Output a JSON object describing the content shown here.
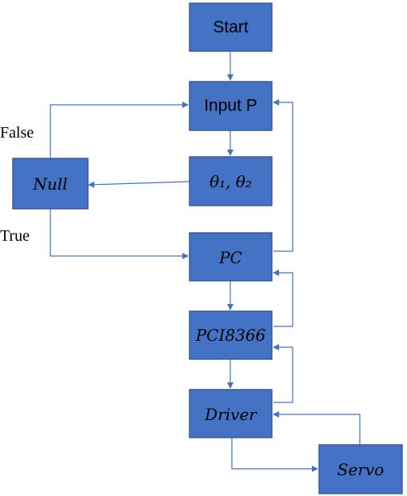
{
  "nodes": {
    "start": "Start",
    "input_p": "Input P",
    "theta": "θ₁, θ₂",
    "null": "Null",
    "pc": "PC",
    "pci8366": "PCI8366",
    "driver": "Driver",
    "servo": "Servo"
  },
  "branch_labels": {
    "false": "False",
    "true": "True"
  },
  "colors": {
    "box_fill": "#4472C4",
    "box_border": "#2F528F",
    "arrow": "#4472C4"
  }
}
